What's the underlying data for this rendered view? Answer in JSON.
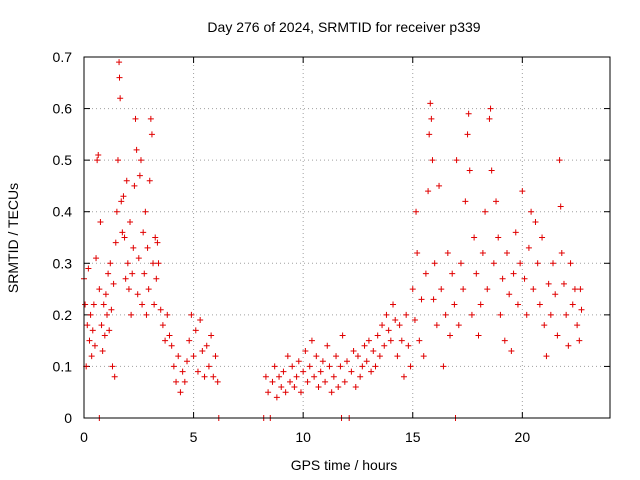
{
  "chart_data": {
    "type": "scatter",
    "title": "Day 276 of 2024, SRMTID for receiver p339",
    "xlabel": "GPS time / hours",
    "ylabel": "SRMTID / TECUs",
    "xlim": [
      0,
      24
    ],
    "ylim": [
      0,
      0.7
    ],
    "xticks": [
      0,
      5,
      10,
      15,
      20
    ],
    "xtick_labels": [
      "0",
      "5",
      "10",
      "15",
      "20"
    ],
    "yticks": [
      0,
      0.1,
      0.2,
      0.3,
      0.4,
      0.5,
      0.6,
      0.7
    ],
    "ytick_labels": [
      "0",
      "0.1",
      "0.2",
      "0.3",
      "0.4",
      "0.5",
      "0.6",
      "0.7"
    ],
    "grid": true,
    "marker": "+",
    "color": "#e00000",
    "series": [
      {
        "name": "SRMTID",
        "points": [
          [
            0.0,
            0.27
          ],
          [
            0.05,
            0.22
          ],
          [
            0.1,
            0.1
          ],
          [
            0.15,
            0.18
          ],
          [
            0.2,
            0.29
          ],
          [
            0.25,
            0.15
          ],
          [
            0.3,
            0.2
          ],
          [
            0.35,
            0.12
          ],
          [
            0.4,
            0.17
          ],
          [
            0.45,
            0.22
          ],
          [
            0.5,
            0.14
          ],
          [
            0.55,
            0.31
          ],
          [
            0.6,
            0.5
          ],
          [
            0.65,
            0.51
          ],
          [
            0.7,
            0.25
          ],
          [
            0.75,
            0.38
          ],
          [
            0.8,
            0.18
          ],
          [
            0.85,
            0.13
          ],
          [
            0.9,
            0.22
          ],
          [
            0.95,
            0.16
          ],
          [
            1.0,
            0.24
          ],
          [
            1.05,
            0.2
          ],
          [
            1.1,
            0.28
          ],
          [
            1.15,
            0.17
          ],
          [
            1.2,
            0.3
          ],
          [
            1.25,
            0.21
          ],
          [
            1.3,
            0.1
          ],
          [
            1.35,
            0.26
          ],
          [
            1.4,
            0.08
          ],
          [
            1.45,
            0.34
          ],
          [
            1.5,
            0.4
          ],
          [
            1.55,
            0.5
          ],
          [
            1.6,
            0.69
          ],
          [
            1.62,
            0.66
          ],
          [
            1.65,
            0.62
          ],
          [
            1.7,
            0.42
          ],
          [
            1.75,
            0.36
          ],
          [
            1.8,
            0.43
          ],
          [
            1.85,
            0.35
          ],
          [
            1.9,
            0.27
          ],
          [
            1.95,
            0.46
          ],
          [
            2.0,
            0.3
          ],
          [
            2.05,
            0.25
          ],
          [
            2.1,
            0.38
          ],
          [
            2.15,
            0.2
          ],
          [
            2.2,
            0.28
          ],
          [
            2.25,
            0.33
          ],
          [
            2.3,
            0.45
          ],
          [
            2.35,
            0.58
          ],
          [
            2.4,
            0.52
          ],
          [
            2.45,
            0.24
          ],
          [
            2.5,
            0.31
          ],
          [
            2.55,
            0.47
          ],
          [
            2.6,
            0.5
          ],
          [
            2.65,
            0.22
          ],
          [
            2.7,
            0.36
          ],
          [
            2.75,
            0.28
          ],
          [
            2.8,
            0.4
          ],
          [
            2.85,
            0.2
          ],
          [
            2.9,
            0.33
          ],
          [
            2.95,
            0.25
          ],
          [
            3.0,
            0.46
          ],
          [
            3.05,
            0.58
          ],
          [
            3.1,
            0.55
          ],
          [
            3.15,
            0.3
          ],
          [
            3.2,
            0.22
          ],
          [
            3.25,
            0.35
          ],
          [
            3.3,
            0.27
          ],
          [
            3.35,
            0.34
          ],
          [
            3.4,
            0.3
          ],
          [
            3.5,
            0.21
          ],
          [
            3.6,
            0.18
          ],
          [
            3.7,
            0.15
          ],
          [
            3.8,
            0.2
          ],
          [
            3.9,
            0.16
          ],
          [
            4.0,
            0.14
          ],
          [
            4.1,
            0.1
          ],
          [
            4.2,
            0.07
          ],
          [
            4.3,
            0.12
          ],
          [
            4.4,
            0.05
          ],
          [
            4.5,
            0.09
          ],
          [
            4.6,
            0.07
          ],
          [
            4.7,
            0.11
          ],
          [
            4.8,
            0.15
          ],
          [
            4.9,
            0.2
          ],
          [
            5.0,
            0.12
          ],
          [
            5.1,
            0.17
          ],
          [
            5.2,
            0.09
          ],
          [
            5.3,
            0.19
          ],
          [
            5.4,
            0.13
          ],
          [
            5.5,
            0.08
          ],
          [
            5.6,
            0.14
          ],
          [
            5.7,
            0.1
          ],
          [
            5.8,
            0.16
          ],
          [
            5.9,
            0.08
          ],
          [
            6.0,
            0.12
          ],
          [
            6.1,
            0.07
          ],
          [
            6.15,
            0.0
          ],
          [
            0.7,
            0.0
          ],
          [
            8.2,
            0.0
          ],
          [
            8.3,
            0.08
          ],
          [
            8.4,
            0.05
          ],
          [
            8.5,
            0.0
          ],
          [
            8.6,
            0.07
          ],
          [
            8.7,
            0.1
          ],
          [
            8.8,
            0.04
          ],
          [
            8.9,
            0.08
          ],
          [
            9.0,
            0.06
          ],
          [
            9.1,
            0.09
          ],
          [
            9.2,
            0.05
          ],
          [
            9.3,
            0.12
          ],
          [
            9.4,
            0.07
          ],
          [
            9.5,
            0.1
          ],
          [
            9.6,
            0.06
          ],
          [
            9.7,
            0.08
          ],
          [
            9.8,
            0.11
          ],
          [
            9.9,
            0.05
          ],
          [
            10.0,
            0.09
          ],
          [
            10.1,
            0.13
          ],
          [
            10.2,
            0.07
          ],
          [
            10.3,
            0.1
          ],
          [
            10.4,
            0.15
          ],
          [
            10.5,
            0.08
          ],
          [
            10.6,
            0.12
          ],
          [
            10.7,
            0.06
          ],
          [
            10.8,
            0.09
          ],
          [
            10.9,
            0.11
          ],
          [
            11.0,
            0.07
          ],
          [
            11.1,
            0.14
          ],
          [
            11.2,
            0.1
          ],
          [
            11.3,
            0.05
          ],
          [
            11.4,
            0.08
          ],
          [
            11.5,
            0.12
          ],
          [
            11.6,
            0.06
          ],
          [
            11.7,
            0.1
          ],
          [
            11.75,
            0.0
          ],
          [
            11.8,
            0.16
          ],
          [
            11.9,
            0.07
          ],
          [
            12.0,
            0.11
          ],
          [
            12.1,
            0.0
          ],
          [
            12.2,
            0.09
          ],
          [
            12.3,
            0.13
          ],
          [
            12.4,
            0.06
          ],
          [
            12.5,
            0.12
          ],
          [
            12.6,
            0.08
          ],
          [
            12.7,
            0.1
          ],
          [
            12.8,
            0.14
          ],
          [
            12.9,
            0.11
          ],
          [
            13.0,
            0.15
          ],
          [
            13.1,
            0.09
          ],
          [
            13.2,
            0.13
          ],
          [
            13.3,
            0.1
          ],
          [
            13.4,
            0.16
          ],
          [
            13.5,
            0.12
          ],
          [
            13.6,
            0.18
          ],
          [
            13.7,
            0.14
          ],
          [
            13.8,
            0.2
          ],
          [
            13.9,
            0.17
          ],
          [
            14.0,
            0.15
          ],
          [
            14.1,
            0.22
          ],
          [
            14.2,
            0.19
          ],
          [
            14.3,
            0.12
          ],
          [
            14.4,
            0.18
          ],
          [
            14.5,
            0.15
          ],
          [
            14.6,
            0.08
          ],
          [
            14.7,
            0.2
          ],
          [
            14.8,
            0.14
          ],
          [
            14.9,
            0.1
          ],
          [
            15.0,
            0.25
          ],
          [
            15.1,
            0.19
          ],
          [
            15.15,
            0.4
          ],
          [
            15.2,
            0.32
          ],
          [
            15.3,
            0.15
          ],
          [
            15.4,
            0.23
          ],
          [
            15.5,
            0.12
          ],
          [
            15.6,
            0.28
          ],
          [
            15.7,
            0.44
          ],
          [
            15.75,
            0.55
          ],
          [
            15.8,
            0.61
          ],
          [
            15.85,
            0.58
          ],
          [
            15.9,
            0.5
          ],
          [
            15.95,
            0.23
          ],
          [
            16.0,
            0.3
          ],
          [
            16.1,
            0.18
          ],
          [
            16.2,
            0.45
          ],
          [
            16.3,
            0.25
          ],
          [
            16.4,
            0.1
          ],
          [
            16.5,
            0.2
          ],
          [
            16.6,
            0.32
          ],
          [
            16.7,
            0.16
          ],
          [
            16.8,
            0.28
          ],
          [
            16.9,
            0.22
          ],
          [
            16.95,
            0.0
          ],
          [
            17.0,
            0.5
          ],
          [
            17.1,
            0.18
          ],
          [
            17.2,
            0.3
          ],
          [
            17.3,
            0.25
          ],
          [
            17.4,
            0.42
          ],
          [
            17.5,
            0.55
          ],
          [
            17.55,
            0.59
          ],
          [
            17.6,
            0.48
          ],
          [
            17.7,
            0.2
          ],
          [
            17.8,
            0.35
          ],
          [
            17.9,
            0.28
          ],
          [
            18.0,
            0.16
          ],
          [
            18.1,
            0.22
          ],
          [
            18.2,
            0.32
          ],
          [
            18.3,
            0.4
          ],
          [
            18.4,
            0.25
          ],
          [
            18.5,
            0.58
          ],
          [
            18.55,
            0.6
          ],
          [
            18.6,
            0.48
          ],
          [
            18.7,
            0.3
          ],
          [
            18.8,
            0.42
          ],
          [
            18.9,
            0.35
          ],
          [
            19.0,
            0.2
          ],
          [
            19.1,
            0.27
          ],
          [
            19.2,
            0.15
          ],
          [
            19.3,
            0.32
          ],
          [
            19.4,
            0.24
          ],
          [
            19.5,
            0.13
          ],
          [
            19.6,
            0.28
          ],
          [
            19.7,
            0.36
          ],
          [
            19.8,
            0.22
          ],
          [
            19.9,
            0.3
          ],
          [
            20.0,
            0.44
          ],
          [
            20.1,
            0.27
          ],
          [
            20.2,
            0.2
          ],
          [
            20.3,
            0.33
          ],
          [
            20.4,
            0.4
          ],
          [
            20.5,
            0.25
          ],
          [
            20.6,
            0.38
          ],
          [
            20.7,
            0.3
          ],
          [
            20.8,
            0.22
          ],
          [
            20.9,
            0.35
          ],
          [
            21.0,
            0.18
          ],
          [
            21.1,
            0.12
          ],
          [
            21.2,
            0.26
          ],
          [
            21.3,
            0.2
          ],
          [
            21.4,
            0.3
          ],
          [
            21.5,
            0.24
          ],
          [
            21.6,
            0.16
          ],
          [
            21.7,
            0.5
          ],
          [
            21.75,
            0.41
          ],
          [
            21.8,
            0.32
          ],
          [
            21.9,
            0.26
          ],
          [
            22.0,
            0.2
          ],
          [
            22.1,
            0.14
          ],
          [
            22.2,
            0.3
          ],
          [
            22.3,
            0.22
          ],
          [
            22.4,
            0.25
          ],
          [
            22.5,
            0.18
          ],
          [
            22.6,
            0.15
          ],
          [
            22.65,
            0.25
          ],
          [
            22.7,
            0.21
          ]
        ]
      }
    ]
  }
}
